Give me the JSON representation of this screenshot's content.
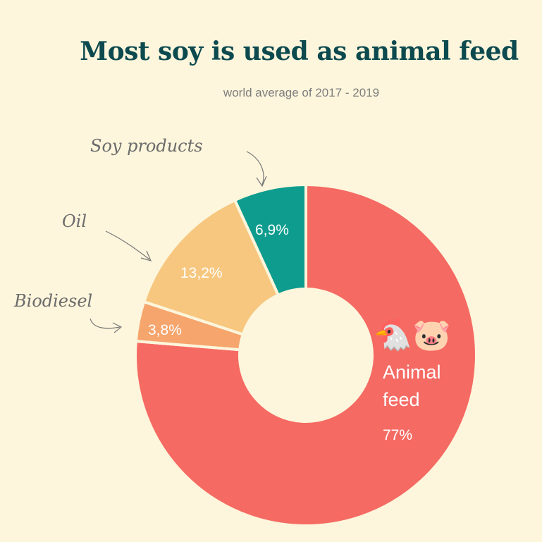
{
  "chart_data": {
    "type": "pie",
    "variant": "donut",
    "title": "Most soy is used as animal feed",
    "subtitle": "world average of 2017 - 2019",
    "slices": [
      {
        "label": "Animal feed",
        "value": 77,
        "value_label": "77%",
        "color": "#f56b63"
      },
      {
        "label": "Biodiesel",
        "value": 3.8,
        "value_label": "3,8%",
        "color": "#f6a56d"
      },
      {
        "label": "Oil",
        "value": 13.2,
        "value_label": "13,2%",
        "color": "#f8c77f"
      },
      {
        "label": "Soy products",
        "value": 6.9,
        "value_label": "6,9%",
        "color": "#0d9c8e"
      }
    ],
    "icons": [
      "chicken-icon",
      "pig-icon"
    ],
    "legend": "none",
    "background": "#fdf5dc",
    "title_color": "#0d4a4f"
  }
}
